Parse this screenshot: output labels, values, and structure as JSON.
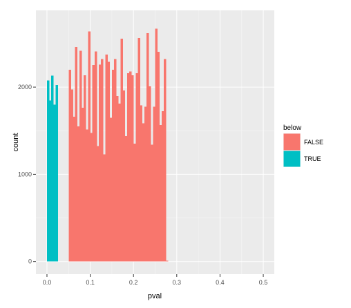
{
  "chart_data": {
    "type": "bar",
    "title": "",
    "xlabel": "pval",
    "ylabel": "count",
    "xlim": [
      -0.0255,
      0.5255
    ],
    "ylim": [
      -145,
      2880
    ],
    "x_ticks": [
      0.0,
      0.1,
      0.2,
      0.3,
      0.4,
      0.5
    ],
    "x_tick_labels": [
      "0.0",
      "0.1",
      "0.2",
      "0.3",
      "0.4",
      "0.5"
    ],
    "y_ticks": [
      0,
      1000,
      2000
    ],
    "y_tick_labels": [
      "0",
      "1000",
      "2000"
    ],
    "grid": true,
    "bin_width": 0.005,
    "legend": {
      "title": "below",
      "placement": "right",
      "entries": [
        {
          "label": "FALSE",
          "color": "#F8766D"
        },
        {
          "label": "TRUE",
          "color": "#00BFC4"
        }
      ]
    },
    "series": [
      {
        "name": "TRUE",
        "color": "#00BFC4",
        "x_start": 0.0,
        "values": [
          2075,
          1845,
          2130,
          1800,
          2025
        ]
      },
      {
        "name": "FALSE",
        "color": "#F8766D",
        "x_start": 0.05,
        "values": [
          2200,
          1975,
          1660,
          2460,
          1550,
          2415,
          1765,
          2135,
          1515,
          2640,
          1475,
          2255,
          2410,
          1325,
          2260,
          2320,
          1230,
          2375,
          2290,
          1650,
          2200,
          2320,
          1900,
          1810,
          2555,
          1960,
          1440,
          2160,
          2180,
          2135,
          1350,
          2160,
          2565,
          1790,
          1585,
          1775,
          2620,
          2010,
          1340,
          1775,
          2670,
          2405,
          1565,
          1725,
          2320,
          10
        ]
      }
    ]
  },
  "colors": {
    "panel_background": "#EBEBEB",
    "grid_major": "#FFFFFF",
    "grid_minor": "#F5F5F5",
    "axis_text": "#4D4D4D",
    "tick": "#333333"
  }
}
